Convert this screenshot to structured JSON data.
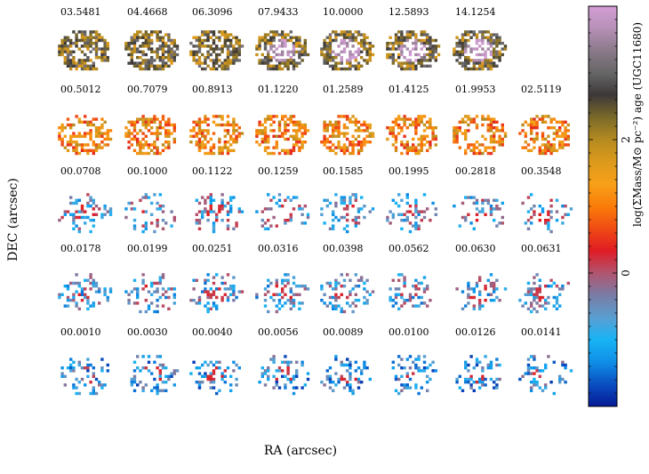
{
  "chart_data": {
    "type": "heatmap",
    "title": "",
    "xlabel": "RA (arcsec)",
    "ylabel": "DEC (arcsec)",
    "colorbar": {
      "label": "log(ΣMass/M⊙ pc⁻²) age (UGC11680)",
      "ticks": [
        0,
        2
      ],
      "range": [
        -2.0,
        4.0
      ]
    },
    "colormap": [
      "#051a96",
      "#0a4fc2",
      "#0f8fe6",
      "#17b4f5",
      "#5a9ed1",
      "#7a7ca5",
      "#b05570",
      "#e01c24",
      "#f04a14",
      "#fa7d0a",
      "#f7a018",
      "#dc9a1c",
      "#b48a20",
      "#7a6a2a",
      "#3d3838",
      "#666666",
      "#8a7a8a",
      "#b690b6",
      "#d49ed6"
    ],
    "panels": [
      {
        "row": 1,
        "labels": [
          "03.5481",
          "04.4668",
          "06.3096",
          "07.9433",
          "10.0000",
          "12.5893",
          "14.1254"
        ]
      },
      {
        "row": 2,
        "labels": [
          "00.5012",
          "00.7079",
          "00.8913",
          "01.1220",
          "01.2589",
          "01.4125",
          "01.9953",
          "02.5119"
        ]
      },
      {
        "row": 3,
        "labels": [
          "00.0708",
          "00.1000",
          "00.1122",
          "00.1259",
          "00.1585",
          "00.1995",
          "00.2818",
          "00.3548"
        ]
      },
      {
        "row": 4,
        "labels": [
          "00.0178",
          "00.0199",
          "00.0251",
          "00.0316",
          "00.0398",
          "00.0562",
          "00.0630",
          "00.0631"
        ]
      },
      {
        "row": 5,
        "labels": [
          "00.0010",
          "00.0030",
          "00.0040",
          "00.0056",
          "00.0089",
          "00.0100",
          "00.0126",
          "00.0141"
        ]
      }
    ],
    "row_mean_values": [
      2.4,
      1.2,
      -0.6,
      -0.7,
      -1.0
    ]
  }
}
